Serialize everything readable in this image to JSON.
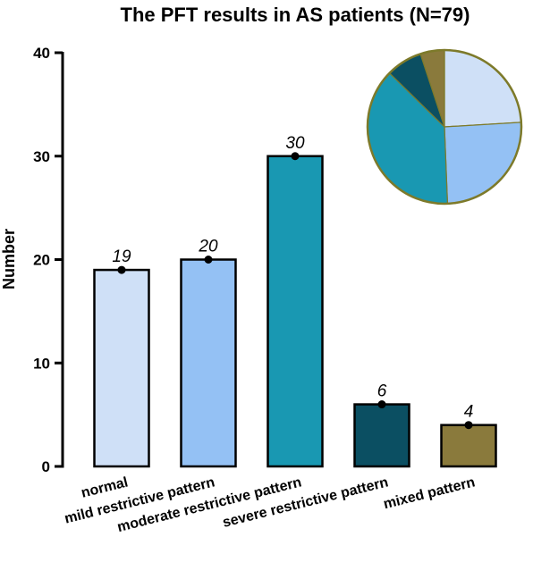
{
  "chart_data": {
    "type": "bar",
    "title": "The PFT results in AS patients (N=79)",
    "xlabel": "",
    "ylabel": "Number",
    "ylim": [
      0,
      40
    ],
    "yticks": [
      0,
      10,
      20,
      30,
      40
    ],
    "categories": [
      "normal",
      "mild restrictive pattern",
      "moderate restrictive pattern",
      "severe restrictive pattern",
      "mixed pattern"
    ],
    "values": [
      19,
      20,
      30,
      6,
      4
    ],
    "data_labels": [
      "19",
      "20",
      "30",
      "6",
      "4"
    ],
    "colors": [
      "#cfe0f7",
      "#94c1f4",
      "#1998b2",
      "#0b4f62",
      "#8a7a3c"
    ],
    "grid": false,
    "inset": {
      "type": "pie",
      "values": [
        19,
        20,
        30,
        6,
        4
      ],
      "colors": [
        "#cfe0f7",
        "#94c1f4",
        "#1998b2",
        "#0b4f62",
        "#8a7a3c"
      ],
      "border_color": "#7d7a2a"
    }
  }
}
